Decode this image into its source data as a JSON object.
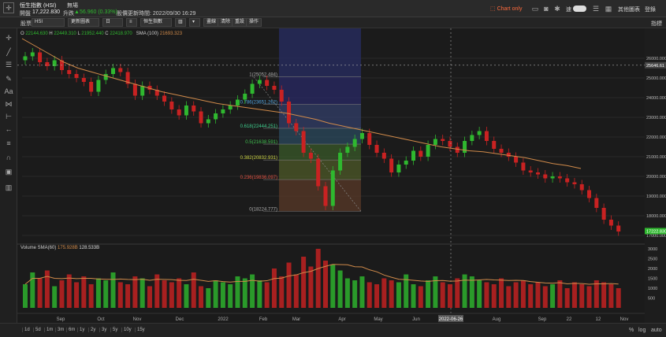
{
  "header": {
    "instrument": "恒生指數 (HSI)",
    "status": "無場",
    "close_label": "開盤",
    "close_value": "17,222.830",
    "change_label": "升跌",
    "change_value": "56.960 (0.33%)",
    "updated": "股價更新時間: 2022/09/30 16:29",
    "chart_only": "Chart only",
    "rate_label": "速",
    "more_label": "其他圖表",
    "login": "登錄"
  },
  "toolbar": {
    "symbol_label": "股票",
    "symbol_value": "HSI",
    "chart_type": "更新圖表",
    "period": "日",
    "indicator": "恒生指數",
    "buttons": [
      "畫線",
      "清除",
      "重設",
      "操作"
    ]
  },
  "ohlc": {
    "o": "22144.630",
    "h": "22449.310",
    "l": "21952.440",
    "c": "22418.970",
    "sma_label": "SMA (100)",
    "sma_value": "21693.323"
  },
  "volume": {
    "label": "Volume SMA(60)",
    "v1": "175.928B",
    "v2": "128.533B"
  },
  "colors": {
    "up": "#2fb82f",
    "down": "#c92222",
    "sma": "#d08a4a",
    "price_tag": "#2fb82f",
    "chart_only": "#ff6b3d"
  },
  "icons": [
    "crosshair-icon",
    "draw-icon",
    "text-icon",
    "fib-icon",
    "measure-icon",
    "zoom-icon",
    "lock-icon",
    "trash-icon",
    "camera-icon",
    "gear-icon",
    "fullscreen-icon"
  ],
  "timeframes": [
    "1d",
    "5d",
    "1m",
    "3m",
    "6m",
    "1y",
    "2y",
    "3y",
    "5y",
    "10y",
    "15y"
  ],
  "scale_labels": [
    "%",
    "log",
    "auto"
  ],
  "chart_data": {
    "type": "candlestick",
    "price_ticks": [
      "26000.000",
      "25000.000",
      "24000.000",
      "23000.000",
      "22000.000",
      "21000.000",
      "20000.000",
      "19000.000",
      "18000.000",
      "17000.000"
    ],
    "price_ylim": [
      16800,
      27200
    ],
    "volume_ticks": [
      "3000",
      "2500",
      "2000",
      "1500",
      "1000",
      "500"
    ],
    "x_ticks": [
      "Sep",
      "Oct",
      "Nov",
      "Dec",
      "2022",
      "Feb",
      "Mar",
      "Apr",
      "May",
      "Jun",
      "2022-06-26",
      "Aug",
      "Sep",
      "22",
      "12",
      "Nov"
    ],
    "last_price": "17222.830",
    "crosshair_price": "25646.61",
    "fib_levels": [
      {
        "label": "1(25052.484)",
        "value": 25052
      },
      {
        "label": "0.786(23651.262)",
        "value": 23651
      },
      {
        "label": "0.618(22444.251)",
        "value": 22444
      },
      {
        "label": "0.5(21638.591)",
        "value": 21638
      },
      {
        "label": "0.382(20832.931)",
        "value": 20833
      },
      {
        "label": "0.236(19836.097)",
        "value": 19836
      },
      {
        "label": "0(18224.777)",
        "value": 18225
      }
    ],
    "sma_series": [
      27000,
      26600,
      26200,
      25800,
      25500,
      25300,
      25100,
      24900,
      24700,
      24500,
      24300,
      24150,
      24000,
      23850,
      23700,
      23600,
      23500,
      23400,
      23300,
      23200,
      23050,
      22900,
      22700,
      22550,
      22400,
      22250,
      22100,
      21950,
      21800,
      21650,
      21500,
      21400,
      21300,
      21250,
      21150,
      21050,
      20950,
      20800,
      20650,
      20550,
      20400
    ],
    "close_series": [
      26100,
      26300,
      25800,
      25600,
      25900,
      25400,
      25200,
      25000,
      24800,
      24300,
      24900,
      25200,
      25500,
      25300,
      24700,
      24100,
      24600,
      24400,
      24100,
      23800,
      23400,
      23100,
      23600,
      23300,
      22700,
      22900,
      23200,
      23400,
      23600,
      23900,
      24200,
      24700,
      24900,
      24600,
      24400,
      23800,
      22700,
      22300,
      21200,
      20900,
      19500,
      18500,
      20300,
      21200,
      21500,
      21900,
      22200,
      21600,
      21200,
      20900,
      20200,
      20600,
      20800,
      21300,
      21000,
      21600,
      21900,
      21800,
      21500,
      21200,
      21800,
      22100,
      22300,
      21800,
      21400,
      21200,
      21000,
      20700,
      20300,
      20200,
      20100,
      19900,
      20000,
      19900,
      19700,
      19600,
      19300,
      18900,
      18400,
      17800,
      17500,
      17200
    ],
    "volume_values": [
      1200,
      1800,
      1500,
      1900,
      1100,
      1400,
      1700,
      1300,
      1600,
      1200,
      1500,
      1400,
      1800,
      1300,
      1200,
      1600,
      1500,
      1100,
      1700,
      1400,
      1300,
      1500,
      1200,
      1800,
      1100,
      1000,
      1400,
      1300,
      1200,
      1600,
      1500,
      1700,
      1400,
      1300,
      2000,
      1600,
      2300,
      1700,
      2600,
      2100,
      3000,
      2400,
      2200,
      1900,
      1500,
      1400,
      1600,
      1300,
      1200,
      1500,
      1400,
      1300,
      1700,
      1200,
      1100,
      1400,
      1600,
      1300,
      1200,
      1500,
      1700,
      1600,
      1400,
      1300,
      1200,
      1500,
      1100,
      1300,
      1400,
      1200,
      1300,
      1100,
      1200,
      1400,
      1000,
      1300,
      1200,
      1100,
      1400,
      1300,
      1200,
      1000
    ]
  }
}
